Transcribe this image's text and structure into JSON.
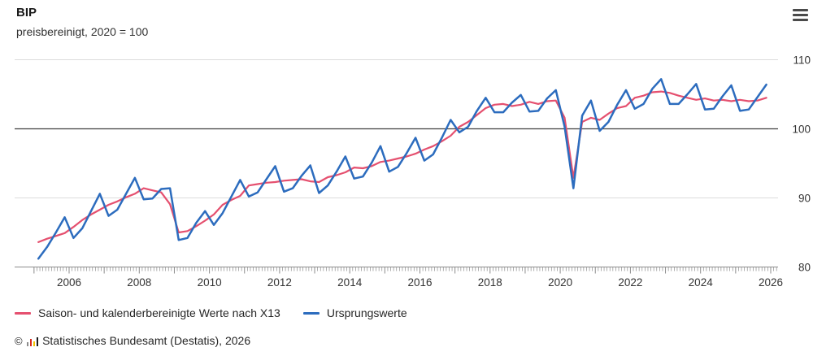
{
  "header": {
    "title": "BIP",
    "subtitle": "preisbereinigt, 2020 = 100"
  },
  "menu": {
    "icon": "hamburger-icon"
  },
  "legend": {
    "items": [
      {
        "label": "Saison- und kalenderbereinigte Werte nach X13",
        "color": "#e5506f"
      },
      {
        "label": "Ursprungswerte",
        "color": "#2c6cbe"
      }
    ]
  },
  "footer": {
    "copyright": "©",
    "text": "Statistisches Bundesamt (Destatis), 2026",
    "logo_bar_colors": [
      "#8c8c8c",
      "#d52b1e",
      "#f5c400",
      "#1a1a1a"
    ],
    "logo_bar_heights": [
      5,
      9,
      6,
      11
    ]
  },
  "chart_data": {
    "type": "line",
    "title": "BIP",
    "subtitle": "preisbereinigt, 2020 = 100",
    "frequency": "quarterly",
    "x_start": 2005.125,
    "x_step": 0.25,
    "x_axis_range": [
      2005,
      2026.2
    ],
    "x_label_years": [
      2006,
      2008,
      2010,
      2012,
      2014,
      2016,
      2018,
      2020,
      2022,
      2024,
      2026
    ],
    "minor_tick_months_per_year": 12,
    "ylim": [
      80,
      110
    ],
    "y_ticks": [
      80,
      90,
      100,
      110
    ],
    "baseline_value": 100,
    "legend_position": "bottom",
    "grid": "horizontal",
    "series": [
      {
        "name": "Saison- und kalenderbereinigte Werte nach X13",
        "color": "#e5506f",
        "width": 2.2,
        "values": [
          83.6,
          84.1,
          84.5,
          84.9,
          85.8,
          86.8,
          87.6,
          88.3,
          89.0,
          89.5,
          90.1,
          90.6,
          91.4,
          91.1,
          90.8,
          89.1,
          85.0,
          85.2,
          85.9,
          86.7,
          87.6,
          89.0,
          89.7,
          90.3,
          91.8,
          92.0,
          92.2,
          92.3,
          92.5,
          92.6,
          92.7,
          92.4,
          92.3,
          93.0,
          93.3,
          93.7,
          94.4,
          94.3,
          94.6,
          95.2,
          95.4,
          95.7,
          96.0,
          96.4,
          97.0,
          97.5,
          98.2,
          99.0,
          100.3,
          101.0,
          102.0,
          103.0,
          103.5,
          103.6,
          103.3,
          103.5,
          103.9,
          103.6,
          104.0,
          104.1,
          101.6,
          92.9,
          101.0,
          101.6,
          101.3,
          102.2,
          103.0,
          103.3,
          104.5,
          104.8,
          105.3,
          105.4,
          105.2,
          104.8,
          104.5,
          104.2,
          104.4,
          104.1,
          104.2,
          104.0,
          104.2,
          104.0,
          104.1,
          104.5
        ]
      },
      {
        "name": "Ursprungswerte",
        "color": "#2c6cbe",
        "width": 2.5,
        "values": [
          81.2,
          82.9,
          85.0,
          87.2,
          84.2,
          85.6,
          88.1,
          90.6,
          87.4,
          88.3,
          90.6,
          92.9,
          89.8,
          89.9,
          91.3,
          91.4,
          83.9,
          84.2,
          86.4,
          88.1,
          86.1,
          87.8,
          90.2,
          92.6,
          90.2,
          90.8,
          92.7,
          94.6,
          90.9,
          91.4,
          93.2,
          94.7,
          90.7,
          91.8,
          93.8,
          96.0,
          92.8,
          93.1,
          95.1,
          97.5,
          93.8,
          94.5,
          96.5,
          98.7,
          95.4,
          96.3,
          98.7,
          101.3,
          99.5,
          100.3,
          102.6,
          104.5,
          102.4,
          102.4,
          103.8,
          104.9,
          102.5,
          102.6,
          104.4,
          105.6,
          100.3,
          91.4,
          101.9,
          104.1,
          99.7,
          101.0,
          103.5,
          105.6,
          102.9,
          103.6,
          105.8,
          107.2,
          103.6,
          103.6,
          105.0,
          106.5,
          102.8,
          102.9,
          104.7,
          106.3,
          102.6,
          102.8,
          104.6,
          106.4
        ]
      }
    ],
    "colors": {
      "grid_light": "#dcdcdc",
      "baseline": "#404040",
      "axis": "#8c8c8c",
      "tick": "#8c8c8c",
      "tick_label": "#333333"
    }
  }
}
